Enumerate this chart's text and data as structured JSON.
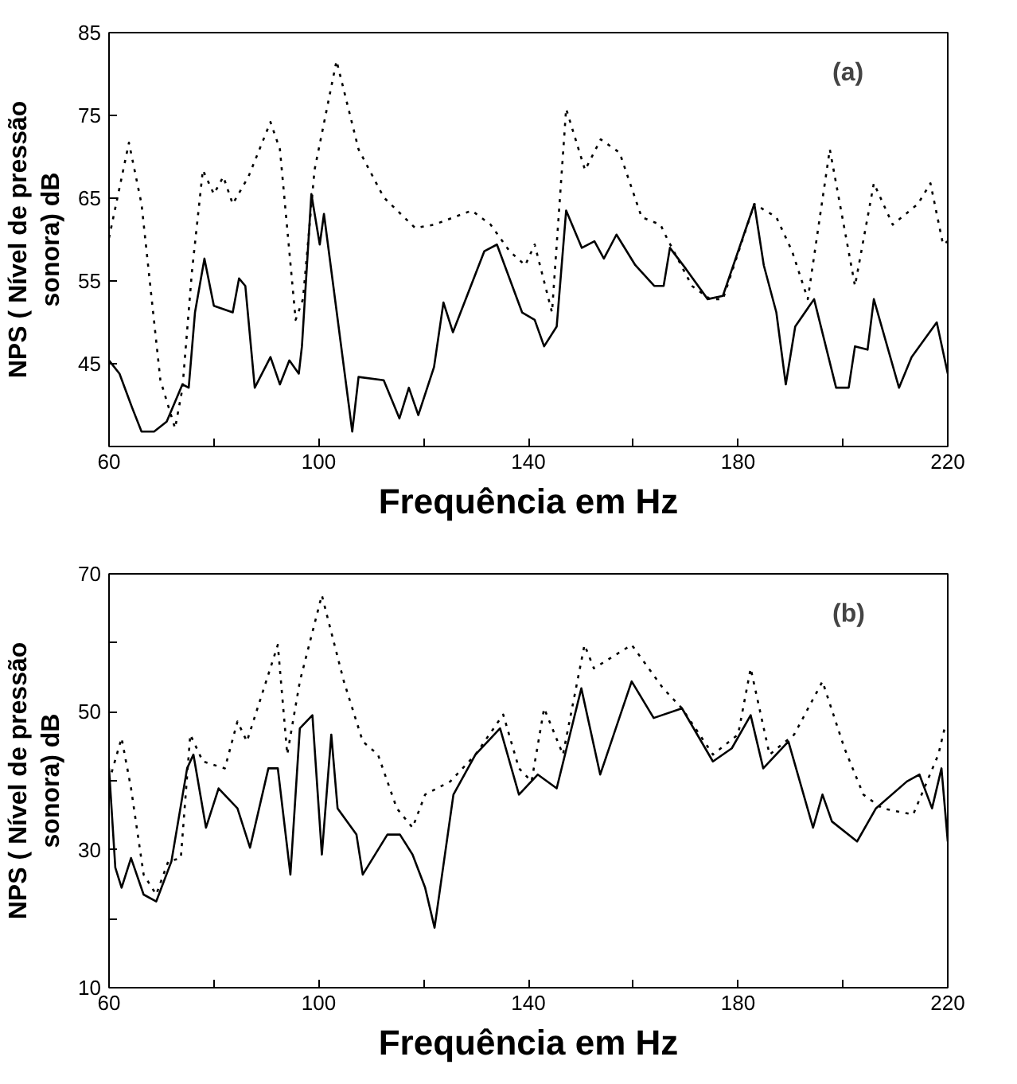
{
  "chart_data": [
    {
      "type": "line",
      "xlabel": "Frequência em Hz",
      "ylabel": "NPS ( Nível de pressão\nsonora) dB",
      "annotations": [
        "(a)"
      ],
      "xlim": [
        60,
        220
      ],
      "xticks": [
        60,
        {
          "value": 80,
          "label": null
        },
        100,
        {
          "value": 120,
          "label": null
        },
        140,
        {
          "value": 160,
          "label": null
        },
        180,
        {
          "value": 200,
          "label": null
        },
        220
      ],
      "ylim": [
        35,
        85
      ],
      "yticks": [
        45,
        55,
        65,
        75,
        85
      ],
      "grid": false,
      "series": [
        {
          "color": "#000000",
          "line_style": "dotted",
          "x": [
            60,
            63.8,
            66.2,
            69.8,
            72.6,
            74,
            75.8,
            77.9,
            80,
            81.8,
            83.6,
            86.6,
            90.8,
            92.6,
            95.6,
            97,
            99.2,
            103.4,
            107.6,
            112.4,
            118.4,
            122,
            129.2,
            132.8,
            136.4,
            139.4,
            141.2,
            144.5,
            147.2,
            150.8,
            153.8,
            157.4,
            161.6,
            165.2,
            166.4,
            171.2,
            174.7,
            177.1,
            183.1,
            187.3,
            190.3,
            193.3,
            197.5,
            202.3,
            205.9,
            209.5,
            214.3,
            216.7,
            219.1,
            220
          ],
          "values": [
            60.2,
            71.7,
            64.3,
            43,
            37.2,
            42,
            56,
            68.4,
            65.5,
            67.6,
            64.3,
            67.6,
            74.2,
            70.9,
            50.3,
            52.8,
            68.4,
            81.6,
            70.9,
            65.1,
            61.4,
            61.8,
            63.5,
            61.8,
            58.6,
            56.9,
            59.4,
            51.2,
            75.8,
            68.4,
            72.1,
            70.5,
            62.7,
            61.8,
            60.2,
            54.4,
            52.8,
            52.8,
            64.3,
            62.7,
            58.6,
            52.8,
            70.9,
            54.4,
            66.8,
            61.8,
            64.3,
            66.8,
            59.4,
            59.8
          ]
        },
        {
          "color": "#000000",
          "line_style": "solid",
          "x": [
            60,
            62,
            64.4,
            66.2,
            68.6,
            71,
            74,
            75.2,
            76.4,
            78.2,
            80,
            83.6,
            84.8,
            86,
            87.8,
            90.8,
            92.6,
            94.4,
            96.2,
            96.8,
            98.6,
            100.2,
            101,
            106.4,
            107.6,
            112.4,
            115.4,
            117.2,
            119,
            122,
            123.8,
            125.6,
            131.6,
            134,
            138.8,
            141.2,
            143,
            145.4,
            147.2,
            150.2,
            152.6,
            154.4,
            156.8,
            160.4,
            164,
            165.8,
            167,
            170,
            174.2,
            177.1,
            183.1,
            184.9,
            187.3,
            189.1,
            190.9,
            194.5,
            198.7,
            201.1,
            202.3,
            204.7,
            205.9,
            210.7,
            213.1,
            217.9,
            220
          ],
          "values": [
            45.4,
            43.8,
            39.7,
            36.8,
            36.8,
            38,
            42.5,
            42.1,
            51.2,
            57.7,
            52,
            51.2,
            55.3,
            54.4,
            42.1,
            45.8,
            42.5,
            45.4,
            43.8,
            47.1,
            65.5,
            59.4,
            63.1,
            36.8,
            43.4,
            43,
            38.4,
            42.1,
            38.8,
            44.6,
            52.4,
            48.8,
            58.6,
            59.4,
            51.2,
            50.3,
            47.1,
            49.5,
            63.5,
            59,
            59.8,
            57.7,
            60.6,
            56.9,
            54.4,
            54.4,
            59,
            56.5,
            52.8,
            53.2,
            64.3,
            56.9,
            51.2,
            42.5,
            49.5,
            52.8,
            42.1,
            42.1,
            47.1,
            46.7,
            52.8,
            42.1,
            45.8,
            50,
            43.8
          ]
        }
      ]
    },
    {
      "type": "line",
      "xlabel": "Frequência em Hz",
      "ylabel": "NPS ( Nível de pressão\nsonora) dB",
      "annotations": [
        "(b)"
      ],
      "xlim": [
        60,
        220
      ],
      "xticks": [
        60,
        {
          "value": 80,
          "label": null
        },
        100,
        {
          "value": 120,
          "label": null
        },
        140,
        {
          "value": 160,
          "label": null
        },
        180,
        {
          "value": 200,
          "label": null
        },
        220
      ],
      "ylim": [
        10,
        70
      ],
      "yticks": [
        10,
        {
          "value": 20,
          "label": null
        },
        30,
        {
          "value": 40,
          "label": null
        },
        50,
        {
          "value": 60,
          "label": null
        },
        70
      ],
      "grid": false,
      "series": [
        {
          "color": "#000000",
          "line_style": "dotted",
          "x": [
            60,
            62.4,
            64.2,
            66.6,
            69,
            71.3,
            73.7,
            75.5,
            77.9,
            82.1,
            84.5,
            86.3,
            92.2,
            94,
            96.4,
            100.6,
            104.8,
            108.4,
            111.3,
            114.9,
            117.9,
            120.3,
            125.1,
            129.9,
            135.2,
            138.2,
            140.6,
            143,
            146.6,
            150.7,
            152.5,
            159.7,
            165.7,
            169.3,
            175.2,
            180,
            182.4,
            186,
            190.7,
            196.1,
            200.3,
            203.9,
            207.5,
            213.4,
            218.2,
            219.4
          ],
          "values": [
            39.9,
            46.2,
            38.9,
            26.4,
            23.5,
            28.3,
            28.8,
            46.7,
            42.8,
            41.8,
            48.6,
            45.7,
            59.7,
            43.8,
            54.4,
            66.9,
            54.4,
            45.7,
            43.8,
            36,
            33.2,
            38,
            39.9,
            43.8,
            49.6,
            41.8,
            39.9,
            50.5,
            43.8,
            59.7,
            56.3,
            59.7,
            53.4,
            50.5,
            43.8,
            46.7,
            56.3,
            43.8,
            46.7,
            54.4,
            44.7,
            38,
            36,
            35.1,
            43.8,
            47.6
          ]
        },
        {
          "color": "#000000",
          "line_style": "solid",
          "x": [
            60,
            61.2,
            62.4,
            64.2,
            66.6,
            69,
            71.9,
            74.9,
            76.1,
            78.5,
            80.9,
            84.5,
            86.9,
            90.4,
            92.2,
            94.6,
            96.4,
            98.8,
            100.6,
            102.4,
            103.6,
            107.2,
            108.4,
            113.1,
            115.5,
            117.9,
            120.3,
            122.1,
            125.7,
            129.9,
            134.6,
            138.2,
            141.8,
            145.4,
            150.1,
            153.7,
            159.7,
            163.9,
            169.3,
            175.2,
            178.8,
            182.4,
            184.8,
            189.6,
            194.3,
            196.1,
            197.9,
            202.7,
            206.3,
            212.2,
            214.6,
            217,
            218.8,
            220
          ],
          "values": [
            41.8,
            27.4,
            24.5,
            28.8,
            23.5,
            22.5,
            28.3,
            41.8,
            43.8,
            33.2,
            38.9,
            36,
            30.3,
            41.8,
            41.8,
            26.4,
            47.6,
            49.5,
            29.3,
            46.7,
            36,
            32.2,
            26.4,
            32.2,
            32.2,
            29.3,
            24.5,
            18.7,
            38,
            43.8,
            47.6,
            38,
            40.9,
            38.9,
            53.4,
            40.9,
            54.4,
            49.1,
            50.5,
            42.8,
            44.7,
            49.5,
            41.8,
            45.7,
            33.2,
            38,
            34.1,
            31.2,
            36,
            39.9,
            40.9,
            36,
            41.8,
            31.2
          ]
        }
      ]
    }
  ]
}
